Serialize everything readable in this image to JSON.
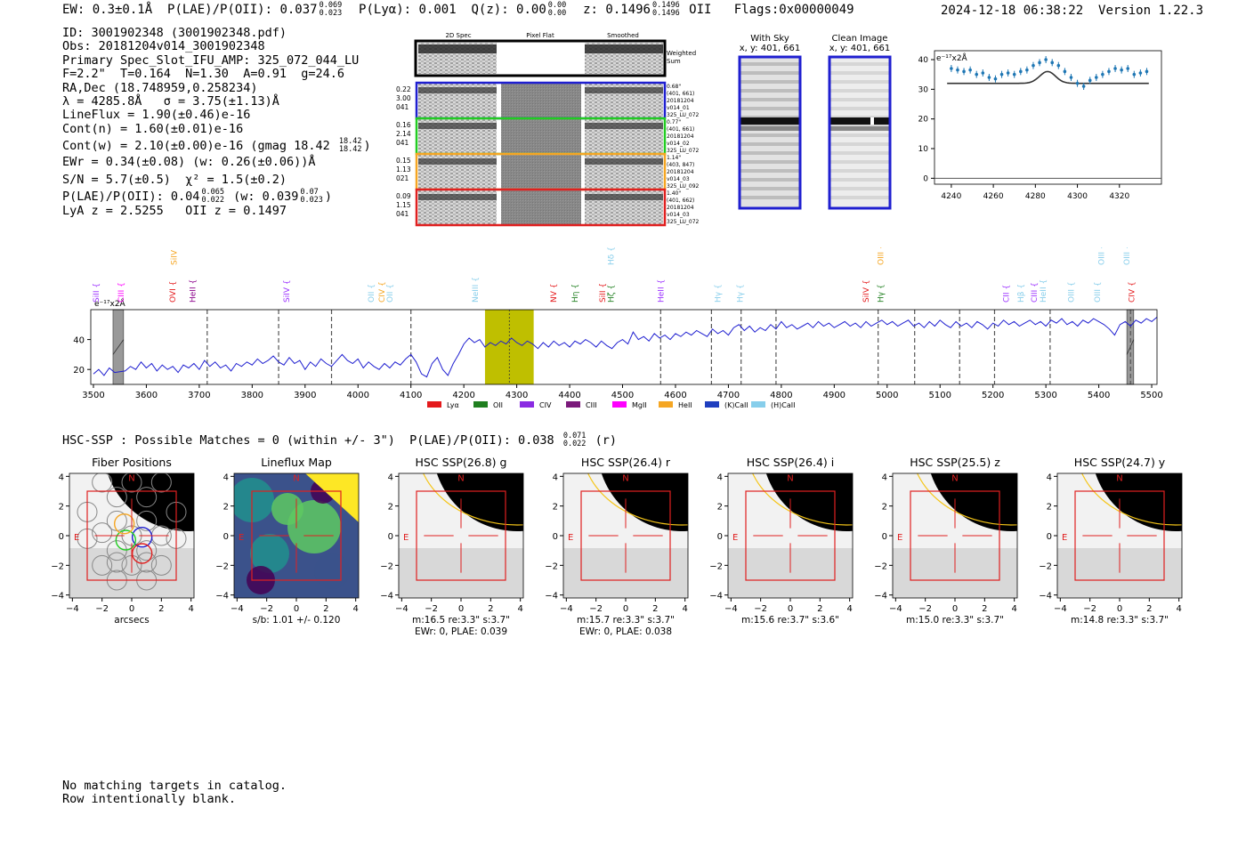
{
  "header": {
    "ew": "EW: 0.3±0.1Å",
    "plae_label": "P(LAE)/P(OII): 0.037",
    "plae_hi": "0.069",
    "plae_lo": "0.023",
    "plya": "P(Lyα): 0.001",
    "qz_label": "Q(z): 0.00",
    "qz_hi": "0.00",
    "qz_lo": "0.00",
    "z_label": "z: 0.1496",
    "z_hi": "0.1496",
    "z_lo": "0.1496",
    "z_line": "OII",
    "flags": "Flags:0x00000049",
    "datetime": "2024-12-18 06:38:22",
    "version": "Version 1.22.3"
  },
  "info": {
    "id": "ID: 3001902348 (3001902348.pdf)",
    "obs": "Obs: 20181204v014_3001902348",
    "primary": "Primary Spec_Slot_IFU_AMP: 325_072_044_LU",
    "fline": "F=2.2\"  T=0.164  N=1.30  A=0.91  g=24.6",
    "radec": "RA,Dec (18.748959,0.258234)",
    "lambda": "λ = 4285.8Å   σ = 3.75(±1.13)Å",
    "lineflux": "LineFlux = 1.90(±0.46)e-16",
    "contn": "Cont(n) = 1.60(±0.01)e-16",
    "contw": "Cont(w) = 2.10(±0.00)e-16 (gmag 18.42",
    "gmag_hi": "18.42",
    "gmag_lo": "18.42",
    "contw_close": ")",
    "ewr": "EWr = 0.34(±0.08) (w: 0.26(±0.06))Å",
    "sn": "S/N = 5.7(±0.5)  χ² = 1.5(±0.2)",
    "plae": "P(LAE)/P(OII): 0.04",
    "plae2_hi": "0.065",
    "plae2_lo": "0.022",
    "plae_w": "(w: 0.039",
    "plae_w_hi": "0.07",
    "plae_w_lo": "0.023",
    "plae_close": ")",
    "lyaz": "LyA z = 2.5255   OII z = 0.1497"
  },
  "cutouts": {
    "col_2d": "2D Spec",
    "col_flat": "Pixel Flat",
    "col_smooth": "Smoothed",
    "weighted": "Weighted",
    "sum": "Sum",
    "rows": [
      {
        "left": [
          "0.22",
          "3.00",
          "041"
        ],
        "right": [
          "0.68\"",
          "(401, 661)",
          "20181204",
          "v014_01",
          "325_LU_072"
        ],
        "color": "#1f1fd0"
      },
      {
        "left": [
          "0.16",
          "2.14",
          "041"
        ],
        "right": [
          "0.77\"",
          "(401, 661)",
          "20181204",
          "v014_02",
          "325_LU_072"
        ],
        "color": "#22cc22"
      },
      {
        "left": [
          "0.15",
          "1.13",
          "021"
        ],
        "right": [
          "1.14\"",
          "(403, 847)",
          "20181204",
          "v014_03",
          "325_LU_092"
        ],
        "color": "#f5a623"
      },
      {
        "left": [
          "0.09",
          "1.15",
          "041"
        ],
        "right": [
          "1.40\"",
          "(401, 662)",
          "20181204",
          "v014_03",
          "325_LU_072"
        ],
        "color": "#e02020"
      }
    ],
    "with_sky": "With Sky",
    "clean": "Clean Image",
    "xy1": "x, y: 401, 661",
    "xy2": "x, y: 401, 661"
  },
  "zoom_chart": {
    "unit": "e⁻¹⁷x2Å",
    "x": [
      4240,
      4243,
      4246,
      4249,
      4252,
      4255,
      4258,
      4261,
      4264,
      4267,
      4270,
      4273,
      4276,
      4279,
      4282,
      4285,
      4288,
      4291,
      4294,
      4297,
      4300,
      4303,
      4306,
      4309,
      4312,
      4315,
      4318,
      4321,
      4324,
      4327,
      4330,
      4333
    ],
    "y": [
      37,
      36.5,
      36,
      36.5,
      35,
      35.5,
      34,
      33.5,
      35,
      35.5,
      35,
      36,
      36.5,
      38,
      39,
      40,
      39,
      38,
      36,
      34,
      32,
      31,
      33,
      34,
      35,
      36,
      37,
      36.5,
      37,
      35,
      35.5,
      36
    ],
    "xticks": [
      4240,
      4260,
      4280,
      4300,
      4320
    ],
    "yticks": [
      0,
      10,
      20,
      30,
      40
    ],
    "xlim": [
      4232,
      4340
    ],
    "ylim": [
      -2,
      43
    ],
    "fit_center": 4285.8,
    "fit_sigma": 3.75,
    "fit_base": 32,
    "fit_amp": 4
  },
  "chart_data": {
    "type": "line",
    "unit_label": "e⁻¹⁷x2Å",
    "xlim": [
      3495,
      5510
    ],
    "ylim": [
      10,
      60
    ],
    "xticks": [
      3500,
      3600,
      3700,
      3800,
      3900,
      4000,
      4100,
      4200,
      4300,
      4400,
      4500,
      4600,
      4700,
      4800,
      4900,
      5000,
      5100,
      5200,
      5300,
      5400,
      5500
    ],
    "yticks": [
      20,
      40
    ],
    "highlight": [
      4240,
      4332
    ],
    "line_center": 4286,
    "masked": [
      [
        3537,
        3557
      ],
      [
        5453,
        5466
      ]
    ],
    "dashed": [
      3715,
      3850,
      3950,
      4100,
      4572,
      4668,
      4724,
      4790,
      4983,
      5052,
      5137,
      5203,
      5308,
      5460
    ],
    "spectrum": [
      [
        3500,
        17
      ],
      [
        3510,
        20
      ],
      [
        3520,
        16
      ],
      [
        3530,
        21
      ],
      [
        3540,
        18
      ],
      [
        3560,
        19
      ],
      [
        3570,
        22
      ],
      [
        3580,
        20
      ],
      [
        3590,
        25
      ],
      [
        3600,
        21
      ],
      [
        3610,
        24
      ],
      [
        3620,
        19
      ],
      [
        3630,
        23
      ],
      [
        3640,
        20
      ],
      [
        3650,
        22
      ],
      [
        3660,
        18
      ],
      [
        3670,
        23
      ],
      [
        3680,
        21
      ],
      [
        3690,
        24
      ],
      [
        3700,
        20
      ],
      [
        3710,
        26
      ],
      [
        3720,
        22
      ],
      [
        3730,
        25
      ],
      [
        3740,
        21
      ],
      [
        3750,
        23
      ],
      [
        3760,
        19
      ],
      [
        3770,
        24
      ],
      [
        3780,
        22
      ],
      [
        3790,
        25
      ],
      [
        3800,
        23
      ],
      [
        3810,
        27
      ],
      [
        3820,
        24
      ],
      [
        3830,
        26
      ],
      [
        3840,
        29
      ],
      [
        3850,
        25
      ],
      [
        3860,
        23
      ],
      [
        3870,
        28
      ],
      [
        3880,
        24
      ],
      [
        3890,
        26
      ],
      [
        3900,
        20
      ],
      [
        3910,
        25
      ],
      [
        3920,
        22
      ],
      [
        3930,
        27
      ],
      [
        3940,
        24
      ],
      [
        3950,
        22
      ],
      [
        3960,
        26
      ],
      [
        3970,
        30
      ],
      [
        3980,
        26
      ],
      [
        3990,
        24
      ],
      [
        4000,
        27
      ],
      [
        4010,
        21
      ],
      [
        4020,
        25
      ],
      [
        4030,
        22
      ],
      [
        4040,
        20
      ],
      [
        4050,
        24
      ],
      [
        4060,
        21
      ],
      [
        4070,
        25
      ],
      [
        4080,
        23
      ],
      [
        4090,
        27
      ],
      [
        4100,
        30
      ],
      [
        4110,
        25
      ],
      [
        4120,
        17
      ],
      [
        4130,
        15
      ],
      [
        4140,
        24
      ],
      [
        4150,
        28
      ],
      [
        4160,
        20
      ],
      [
        4170,
        16
      ],
      [
        4180,
        24
      ],
      [
        4190,
        30
      ],
      [
        4200,
        37
      ],
      [
        4210,
        41
      ],
      [
        4220,
        38
      ],
      [
        4230,
        40
      ],
      [
        4240,
        35
      ],
      [
        4250,
        38
      ],
      [
        4260,
        36
      ],
      [
        4270,
        39
      ],
      [
        4280,
        37
      ],
      [
        4290,
        41
      ],
      [
        4300,
        38
      ],
      [
        4310,
        36
      ],
      [
        4320,
        39
      ],
      [
        4330,
        37
      ],
      [
        4340,
        34
      ],
      [
        4350,
        38
      ],
      [
        4360,
        35
      ],
      [
        4370,
        39
      ],
      [
        4380,
        36
      ],
      [
        4390,
        38
      ],
      [
        4400,
        35
      ],
      [
        4410,
        39
      ],
      [
        4420,
        37
      ],
      [
        4430,
        40
      ],
      [
        4440,
        38
      ],
      [
        4450,
        35
      ],
      [
        4460,
        39
      ],
      [
        4470,
        36
      ],
      [
        4480,
        34
      ],
      [
        4490,
        38
      ],
      [
        4500,
        40
      ],
      [
        4510,
        37
      ],
      [
        4520,
        45
      ],
      [
        4530,
        40
      ],
      [
        4540,
        42
      ],
      [
        4550,
        39
      ],
      [
        4560,
        44
      ],
      [
        4570,
        41
      ],
      [
        4580,
        43
      ],
      [
        4590,
        40
      ],
      [
        4600,
        44
      ],
      [
        4610,
        42
      ],
      [
        4620,
        45
      ],
      [
        4630,
        43
      ],
      [
        4640,
        46
      ],
      [
        4650,
        44
      ],
      [
        4660,
        42
      ],
      [
        4670,
        47
      ],
      [
        4680,
        44
      ],
      [
        4690,
        46
      ],
      [
        4700,
        43
      ],
      [
        4710,
        48
      ],
      [
        4720,
        50
      ],
      [
        4730,
        46
      ],
      [
        4740,
        49
      ],
      [
        4750,
        45
      ],
      [
        4760,
        48
      ],
      [
        4770,
        46
      ],
      [
        4780,
        50
      ],
      [
        4790,
        47
      ],
      [
        4800,
        52
      ],
      [
        4810,
        48
      ],
      [
        4820,
        50
      ],
      [
        4830,
        47
      ],
      [
        4840,
        49
      ],
      [
        4850,
        51
      ],
      [
        4860,
        48
      ],
      [
        4870,
        52
      ],
      [
        4880,
        49
      ],
      [
        4890,
        51
      ],
      [
        4900,
        48
      ],
      [
        4910,
        50
      ],
      [
        4920,
        52
      ],
      [
        4930,
        49
      ],
      [
        4940,
        51
      ],
      [
        4950,
        48
      ],
      [
        4960,
        52
      ],
      [
        4970,
        49
      ],
      [
        4980,
        51
      ],
      [
        4990,
        53
      ],
      [
        5000,
        50
      ],
      [
        5010,
        52
      ],
      [
        5020,
        49
      ],
      [
        5030,
        51
      ],
      [
        5040,
        53
      ],
      [
        5050,
        49
      ],
      [
        5060,
        51
      ],
      [
        5070,
        48
      ],
      [
        5080,
        52
      ],
      [
        5090,
        49
      ],
      [
        5100,
        53
      ],
      [
        5110,
        50
      ],
      [
        5120,
        48
      ],
      [
        5130,
        52
      ],
      [
        5140,
        49
      ],
      [
        5150,
        51
      ],
      [
        5160,
        48
      ],
      [
        5170,
        52
      ],
      [
        5180,
        50
      ],
      [
        5190,
        47
      ],
      [
        5200,
        51
      ],
      [
        5210,
        49
      ],
      [
        5220,
        53
      ],
      [
        5230,
        50
      ],
      [
        5240,
        52
      ],
      [
        5250,
        49
      ],
      [
        5260,
        51
      ],
      [
        5270,
        53
      ],
      [
        5280,
        50
      ],
      [
        5290,
        52
      ],
      [
        5300,
        49
      ],
      [
        5310,
        53
      ],
      [
        5320,
        51
      ],
      [
        5330,
        54
      ],
      [
        5340,
        50
      ],
      [
        5350,
        52
      ],
      [
        5360,
        49
      ],
      [
        5370,
        53
      ],
      [
        5380,
        51
      ],
      [
        5390,
        54
      ],
      [
        5400,
        52
      ],
      [
        5410,
        50
      ],
      [
        5420,
        47
      ],
      [
        5430,
        43
      ],
      [
        5440,
        50
      ],
      [
        5450,
        52
      ],
      [
        5460,
        49
      ],
      [
        5470,
        53
      ],
      [
        5480,
        51
      ],
      [
        5490,
        54
      ],
      [
        5500,
        52
      ],
      [
        5510,
        55
      ]
    ],
    "legend": [
      {
        "name": "Lyα",
        "color": "#e41a1c"
      },
      {
        "name": "OII",
        "color": "#1f7f1f"
      },
      {
        "name": "CIV",
        "color": "#8a2be2"
      },
      {
        "name": "CIII",
        "color": "#7b1a7b"
      },
      {
        "name": "MgII",
        "color": "#ff00ff"
      },
      {
        "name": "HeII",
        "color": "#f5a623"
      },
      {
        "name": "(K)CaII",
        "color": "#1f3fbf"
      },
      {
        "name": "(H)CaII",
        "color": "#87ceeb"
      }
    ],
    "lines": [
      {
        "label": "SiII",
        "x": 3505,
        "color": "#9b30ff",
        "row": 0
      },
      {
        "label": "CIII",
        "x": 3552,
        "color": "#ff00ff",
        "row": 0
      },
      {
        "label": "SiIV",
        "x": 3652,
        "color": "#f5a623",
        "row": 1
      },
      {
        "label": "OVI",
        "x": 3650,
        "color": "#e41a1c",
        "row": 0
      },
      {
        "label": "HeII",
        "x": 3688,
        "color": "#8b008b",
        "row": 0
      },
      {
        "label": "SiIV",
        "x": 3865,
        "color": "#9b30ff",
        "row": 0
      },
      {
        "label": "OII",
        "x": 4025,
        "color": "#87ceeb",
        "row": 0
      },
      {
        "label": "CIV",
        "x": 4045,
        "color": "#f5a623",
        "row": 0
      },
      {
        "label": "OII",
        "x": 4060,
        "color": "#87ceeb",
        "row": 0
      },
      {
        "label": "NeIII",
        "x": 4222,
        "color": "#87ceeb",
        "row": 0
      },
      {
        "label": "NV",
        "x": 4370,
        "color": "#e41a1c",
        "row": 0
      },
      {
        "label": "Hη",
        "x": 4410,
        "color": "#1f7f1f",
        "row": 0
      },
      {
        "label": "SiII",
        "x": 4462,
        "color": "#e41a1c",
        "row": 0
      },
      {
        "label": "Hζ",
        "x": 4478,
        "color": "#1f7f1f",
        "row": 0
      },
      {
        "label": "Hδ",
        "x": 4478,
        "color": "#87ceeb",
        "row": 1
      },
      {
        "label": "HeII",
        "x": 4572,
        "color": "#9b30ff",
        "row": 0
      },
      {
        "label": "Hγ",
        "x": 4680,
        "color": "#87ceeb",
        "row": 0
      },
      {
        "label": "Hγ",
        "x": 4722,
        "color": "#87ceeb",
        "row": 0
      },
      {
        "label": "SiIV",
        "x": 4960,
        "color": "#e41a1c",
        "row": 0
      },
      {
        "label": "OIII",
        "x": 4988,
        "color": "#f5a623",
        "row": 1
      },
      {
        "label": "Hγ",
        "x": 4988,
        "color": "#1f7f1f",
        "row": 0
      },
      {
        "label": "CII",
        "x": 5225,
        "color": "#9b30ff",
        "row": 0
      },
      {
        "label": "Hβ",
        "x": 5253,
        "color": "#87ceeb",
        "row": 0
      },
      {
        "label": "CIII",
        "x": 5278,
        "color": "#9b30ff",
        "row": 0
      },
      {
        "label": "HeII",
        "x": 5295,
        "color": "#87ceeb",
        "row": 0
      },
      {
        "label": "OIII",
        "x": 5348,
        "color": "#87ceeb",
        "row": 0
      },
      {
        "label": "OIII",
        "x": 5397,
        "color": "#87ceeb",
        "row": 0
      },
      {
        "label": "OIII",
        "x": 5405,
        "color": "#87ceeb",
        "row": 1
      },
      {
        "label": "OIII",
        "x": 5453,
        "color": "#87ceeb",
        "row": 1
      },
      {
        "label": "CIV",
        "x": 5462,
        "color": "#e41a1c",
        "row": 0
      }
    ]
  },
  "hsc": {
    "header": "HSC-SSP : Possible Matches = 0 (within +/- 3\")  P(LAE)/P(OII): 0.038",
    "header_hi": "0.071",
    "header_lo": "0.022",
    "header_band": "(r)",
    "ticks": [
      "−4",
      "−2",
      "0",
      "2",
      "4"
    ],
    "n": "N",
    "e": "E",
    "panels": [
      {
        "title": "Fiber Positions",
        "sub1": "arcsecs",
        "sub2": ""
      },
      {
        "title": "Lineflux Map",
        "sub1": "s/b: 1.01 +/- 0.120",
        "sub2": ""
      },
      {
        "title": "HSC SSP(26.8) g",
        "sub1": "m:16.5   re:3.3\"   s:3.7\"",
        "sub2": "EWr: 0, PLAE: 0.039"
      },
      {
        "title": "HSC SSP(26.4) r",
        "sub1": "m:15.7   re:3.3\"   s:3.7\"",
        "sub2": "EWr: 0, PLAE: 0.038"
      },
      {
        "title": "HSC SSP(26.4) i",
        "sub1": "m:15.6   re:3.7\"   s:3.6\"",
        "sub2": ""
      },
      {
        "title": "HSC SSP(25.5) z",
        "sub1": "m:15.0   re:3.3\"   s:3.7\"",
        "sub2": ""
      },
      {
        "title": "HSC SSP(24.7) y",
        "sub1": "m:14.8   re:3.3\"   s:3.7\"",
        "sub2": ""
      }
    ]
  },
  "footer": {
    "line1": "No matching targets in catalog.",
    "line2": "Row intentionally blank."
  }
}
